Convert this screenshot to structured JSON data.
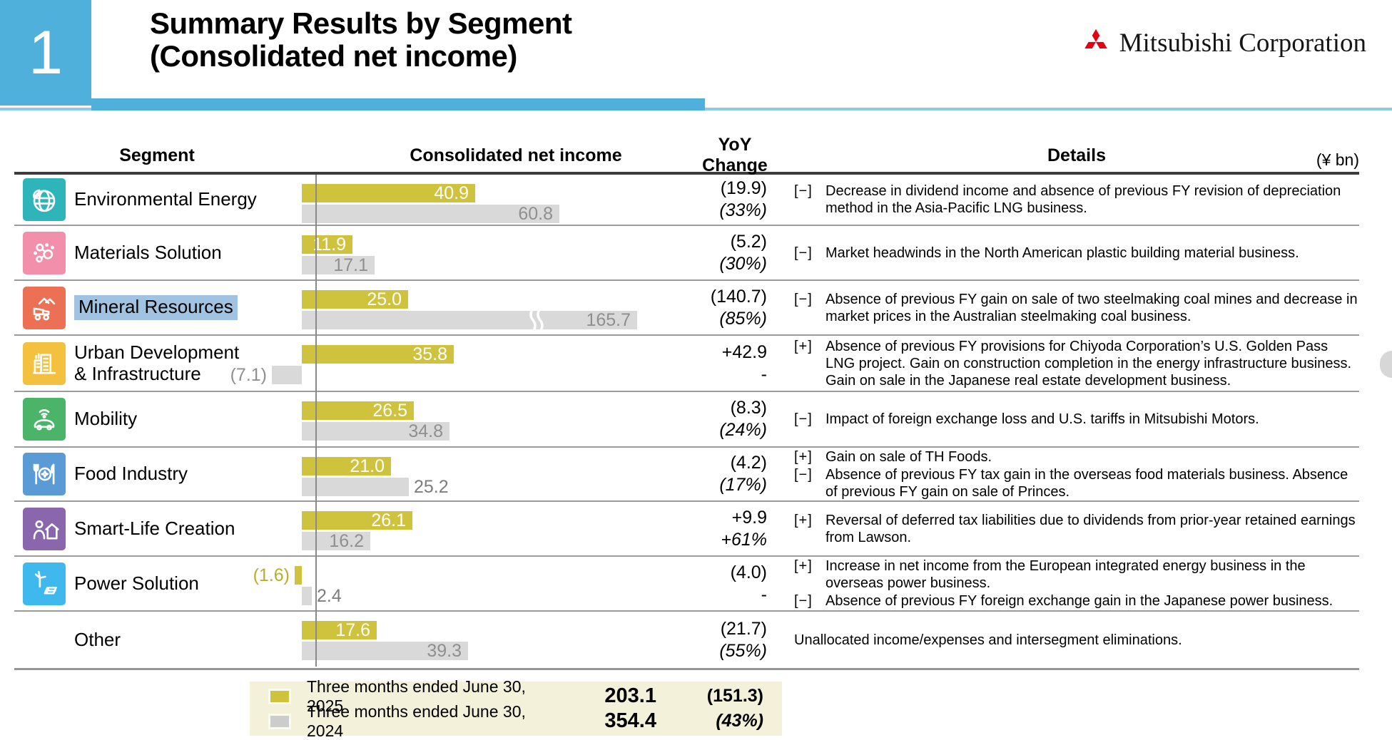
{
  "slide": {
    "page_number": "1",
    "title_line1": "Summary Results by Segment",
    "title_line2": "(Consolidated net income)",
    "company": "Mitsubishi Corporation",
    "unit_label": "(¥ bn)"
  },
  "headers": {
    "segment": "Segment",
    "income": "Consolidated net income",
    "yoy_line1": "YoY",
    "yoy_line2": "Change",
    "details": "Details"
  },
  "rows": [
    {
      "label1": "Environmental Energy",
      "icon": "globe-leaf-icon",
      "icon_color": "#2db5ba",
      "highlighted": false,
      "current": 40.9,
      "current_label": "40.9",
      "prior": 60.8,
      "prior_label": "60.8",
      "yoy1": "(19.9)",
      "yoy2": "(33%)",
      "details": [
        {
          "marker": "[−]",
          "text": "Decrease in dividend income and absence of previous FY revision of depreciation method in the Asia-Pacific LNG business."
        }
      ]
    },
    {
      "label1": "Materials Solution",
      "icon": "molecule-icon",
      "icon_color": "#f28fab",
      "highlighted": false,
      "current": 11.9,
      "current_label": "11.9",
      "prior": 17.1,
      "prior_label": "17.1",
      "yoy1": "(5.2)",
      "yoy2": "(30%)",
      "details": [
        {
          "marker": "[−]",
          "text": "Market headwinds in the North American plastic building material business."
        }
      ]
    },
    {
      "label1": "Mineral Resources",
      "icon": "mining-truck-icon",
      "icon_color": "#ec7154",
      "highlighted": true,
      "current": 25.0,
      "current_label": "25.0",
      "prior": 165.7,
      "prior_label": "165.7",
      "prior_truncated": true,
      "yoy1": "(140.7)",
      "yoy2": "(85%)",
      "details": [
        {
          "marker": "[−]",
          "text": "Absence of previous FY gain on sale of two steelmaking coal mines and decrease in market prices in the Australian steelmaking coal business."
        }
      ]
    },
    {
      "label1": "Urban Development",
      "label2": "& Infrastructure",
      "icon": "buildings-icon",
      "icon_color": "#f3c13d",
      "highlighted": false,
      "current": 35.8,
      "current_label": "35.8",
      "prior": -7.1,
      "prior_label": "(7.1)",
      "yoy1": "+42.9",
      "yoy2": "-",
      "details": [
        {
          "marker": "[+]",
          "text": "Absence of previous FY provisions for Chiyoda Corporation’s U.S. Golden Pass LNG project. Gain on construction completion in the energy infrastructure business. Gain on sale in the Japanese real estate development business."
        }
      ]
    },
    {
      "label1": "Mobility",
      "icon": "connected-car-icon",
      "icon_color": "#4ab468",
      "highlighted": false,
      "current": 26.5,
      "current_label": "26.5",
      "prior": 34.8,
      "prior_label": "34.8",
      "yoy1": "(8.3)",
      "yoy2": "(24%)",
      "details": [
        {
          "marker": "[−]",
          "text": "Impact of foreign exchange loss and U.S. tariffs in Mitsubishi Motors."
        }
      ]
    },
    {
      "label1": "Food Industry",
      "icon": "food-plate-icon",
      "icon_color": "#5b9bd5",
      "highlighted": false,
      "current": 21.0,
      "current_label": "21.0",
      "prior": 25.2,
      "prior_label": "25.2",
      "yoy1": "(4.2)",
      "yoy2": "(17%)",
      "details": [
        {
          "marker": "[+]",
          "text": "Gain on sale of TH Foods."
        },
        {
          "marker": "[−]",
          "text": "Absence of previous FY tax gain in the overseas food materials business. Absence of previous FY gain on sale of Princes."
        }
      ]
    },
    {
      "label1": "Smart-Life Creation",
      "icon": "person-house-icon",
      "icon_color": "#8a67ad",
      "highlighted": false,
      "current": 26.1,
      "current_label": "26.1",
      "prior": 16.2,
      "prior_label": "16.2",
      "yoy1": "+9.9",
      "yoy2": "+61%",
      "details": [
        {
          "marker": "[+]",
          "text": "Reversal of deferred tax liabilities due to dividends from prior-year retained earnings from Lawson."
        }
      ]
    },
    {
      "label1": "Power Solution",
      "icon": "wind-solar-icon",
      "icon_color": "#3fb9ed",
      "highlighted": false,
      "current": -1.6,
      "current_label": "(1.6)",
      "prior": 2.4,
      "prior_label": "2.4",
      "yoy1": "(4.0)",
      "yoy2": "-",
      "details": [
        {
          "marker": "[+]",
          "text": "Increase in net income from the European integrated energy business in the overseas power business."
        },
        {
          "marker": "[−]",
          "text": "Absence of previous FY foreign exchange gain in the Japanese power business."
        }
      ]
    },
    {
      "label1": "Other",
      "icon": "",
      "icon_color": "",
      "highlighted": false,
      "current": 17.6,
      "current_label": "17.6",
      "prior": 39.3,
      "prior_label": "39.3",
      "yoy1": "(21.7)",
      "yoy2": "(55%)",
      "details": [
        {
          "marker": "",
          "text": "Unallocated income/expenses and intersegment eliminations."
        }
      ]
    }
  ],
  "legend": {
    "series": [
      {
        "label": "Three months ended June 30, 2025",
        "total": "203.1",
        "change": "(151.3)",
        "color": "#cfc23d"
      },
      {
        "label": "Three months ended June 30, 2024",
        "total": "354.4",
        "change": "(43%)",
        "color": "#cccccc"
      }
    ]
  },
  "chart_data": {
    "type": "bar",
    "orientation": "horizontal",
    "unit": "¥ bn",
    "title": "Summary Results by Segment (Consolidated net income)",
    "categories": [
      "Environmental Energy",
      "Materials Solution",
      "Mineral Resources",
      "Urban Development & Infrastructure",
      "Mobility",
      "Food Industry",
      "Smart-Life Creation",
      "Power Solution",
      "Other"
    ],
    "series": [
      {
        "name": "Three months ended June 30, 2025",
        "color": "#cfc23d",
        "values": [
          40.9,
          11.9,
          25.0,
          35.8,
          26.5,
          21.0,
          26.1,
          -1.6,
          17.6
        ],
        "total": 203.1
      },
      {
        "name": "Three months ended June 30, 2024",
        "color": "#d9d9d9",
        "values": [
          60.8,
          17.1,
          165.7,
          -7.1,
          34.8,
          25.2,
          16.2,
          2.4,
          39.3
        ],
        "total": 354.4
      }
    ],
    "yoy_change": [
      "(19.9)",
      "(5.2)",
      "(140.7)",
      "+42.9",
      "(8.3)",
      "(4.2)",
      "+9.9",
      "(4.0)",
      "(21.7)"
    ],
    "yoy_change_pct": [
      "(33%)",
      "(30%)",
      "(85%)",
      "-",
      "(24%)",
      "(17%)",
      "+61%",
      "-",
      "(55%)"
    ],
    "total_yoy_change": "(151.3)",
    "total_yoy_change_pct": "(43%)",
    "notes": "2024 bar for Mineral Resources drawn truncated with a break mark"
  }
}
